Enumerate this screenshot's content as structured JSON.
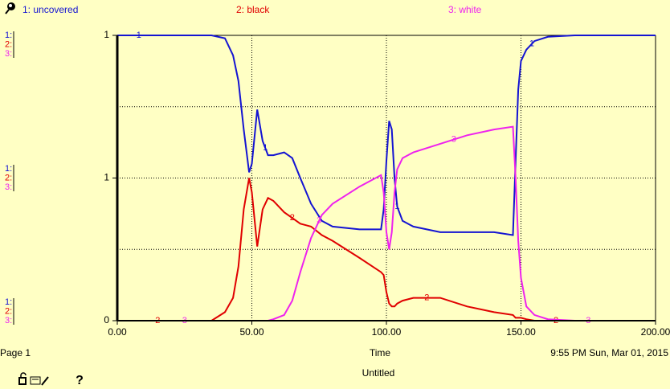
{
  "chart_data": {
    "type": "line",
    "x_label": "Time",
    "x": [
      0,
      5,
      10,
      15,
      20,
      25,
      30,
      35,
      40,
      43,
      45,
      47,
      49,
      50,
      52,
      54,
      56,
      58,
      62,
      65,
      68,
      72,
      76,
      80,
      90,
      98,
      99,
      100,
      101,
      102,
      103,
      104,
      106,
      110,
      120,
      130,
      140,
      147,
      148,
      149,
      150,
      152,
      155,
      160,
      170,
      180,
      190,
      200
    ],
    "series": [
      {
        "name": "1: uncovered",
        "label": "1",
        "axis_label": "1:",
        "color": "#1414d2",
        "values": [
          1,
          1,
          1,
          1,
          1,
          1,
          1,
          1,
          0.99,
          0.93,
          0.84,
          0.67,
          0.52,
          0.55,
          0.74,
          0.63,
          0.58,
          0.58,
          0.59,
          0.57,
          0.5,
          0.41,
          0.35,
          0.33,
          0.32,
          0.32,
          0.39,
          0.56,
          0.7,
          0.67,
          0.5,
          0.4,
          0.35,
          0.33,
          0.31,
          0.31,
          0.31,
          0.3,
          0.56,
          0.81,
          0.91,
          0.95,
          0.98,
          0.995,
          1,
          1,
          1,
          1
        ]
      },
      {
        "name": "2: black",
        "label": "2",
        "axis_label": "2:",
        "color": "#e00000",
        "values": [
          0,
          0,
          0,
          0,
          0,
          0,
          0,
          0,
          0.03,
          0.08,
          0.19,
          0.39,
          0.5,
          0.45,
          0.26,
          0.39,
          0.43,
          0.42,
          0.38,
          0.36,
          0.34,
          0.33,
          0.3,
          0.28,
          0.22,
          0.17,
          0.16,
          0.1,
          0.06,
          0.05,
          0.05,
          0.06,
          0.07,
          0.08,
          0.08,
          0.05,
          0.03,
          0.02,
          0.01,
          0.01,
          0.01,
          0.005,
          0,
          0,
          0,
          0,
          0,
          0
        ]
      },
      {
        "name": "3: white",
        "label": "3",
        "axis_label": "3:",
        "color": "#ee22ee",
        "values": [
          0,
          0,
          0,
          0,
          0,
          0,
          0,
          0,
          0,
          0,
          0,
          0,
          0,
          0,
          0,
          0,
          0,
          0.005,
          0.02,
          0.07,
          0.17,
          0.29,
          0.37,
          0.41,
          0.47,
          0.51,
          0.45,
          0.31,
          0.25,
          0.31,
          0.45,
          0.53,
          0.57,
          0.59,
          0.62,
          0.65,
          0.67,
          0.68,
          0.5,
          0.28,
          0.15,
          0.05,
          0.02,
          0.005,
          0,
          0,
          0,
          0
        ]
      }
    ],
    "xlim": [
      0,
      200
    ],
    "xticks": [
      {
        "value": 0,
        "label": "0.00"
      },
      {
        "value": 50,
        "label": "50.00"
      },
      {
        "value": 100,
        "label": "100.00"
      },
      {
        "value": 150,
        "label": "150.00"
      },
      {
        "value": 200,
        "label": "200.00"
      }
    ],
    "ylim": [
      0,
      1
    ],
    "yticks": [
      0,
      {
        "value": 0.5,
        "label": "1"
      },
      1
    ],
    "ygrid": [
      0.25,
      0.5,
      0.75
    ],
    "grid": true
  },
  "footer": {
    "page": "Page 1",
    "timestamp": "9:55 PM   Sun, Mar 01, 2015",
    "title": "Untitled",
    "help": "?"
  }
}
